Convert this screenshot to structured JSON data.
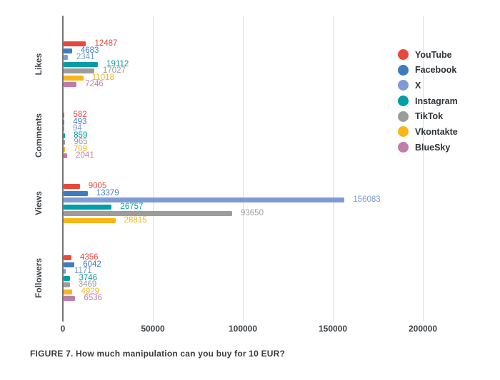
{
  "figure": {
    "caption": "FIGURE 7. How much manipulation can you buy for 10 EUR?"
  },
  "chart_data": {
    "type": "bar",
    "orientation": "horizontal",
    "title": "",
    "categories": [
      "Likes",
      "Comments",
      "Views",
      "Followers"
    ],
    "series": [
      {
        "name": "YouTube",
        "color": "#E8483B",
        "values": [
          12487,
          582,
          9005,
          4356
        ]
      },
      {
        "name": "Facebook",
        "color": "#3E7CBF",
        "values": [
          4683,
          493,
          13379,
          6042
        ]
      },
      {
        "name": "X",
        "color": "#7E9CD3",
        "values": [
          2341,
          94,
          156083,
          1171
        ]
      },
      {
        "name": "Instagram",
        "color": "#009EA6",
        "values": [
          19112,
          859,
          26757,
          3746
        ]
      },
      {
        "name": "TikTok",
        "color": "#9C9C9C",
        "values": [
          17027,
          965,
          93650,
          3469
        ]
      },
      {
        "name": "Vkontakte",
        "color": "#F8B617",
        "values": [
          11018,
          709,
          28815,
          4929
        ]
      },
      {
        "name": "BlueSky",
        "color": "#C07CAD",
        "values": [
          7246,
          2041,
          null,
          6536
        ]
      }
    ],
    "x_ticks": [
      0,
      50000,
      100000,
      150000,
      200000
    ],
    "x_tick_labels": [
      "0",
      "50000",
      "100000",
      "150000",
      "200000"
    ],
    "xlim": [
      0,
      220000
    ],
    "grid": "vertical",
    "legend_position": "right",
    "value_labels": true,
    "axis_color": "#757575",
    "gridline_color": "#dcdcdc"
  }
}
